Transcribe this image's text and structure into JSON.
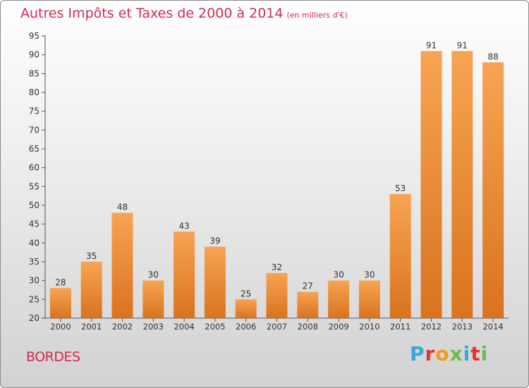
{
  "header": {
    "title": "Autres Impôts et Taxes de 2000 à 2014",
    "subtitle": "(en milliers d'€)"
  },
  "footer": {
    "town": "BORDES",
    "logo_text": "Proxiti",
    "logo_colors": [
      "#3aa6dd",
      "#e8312b",
      "#f39b1d",
      "#6dbb45",
      "#3aa6dd",
      "#e8312b",
      "#6dbb45"
    ]
  },
  "colors": {
    "bar_light": "#f7a453",
    "bar_dark": "#d9731e",
    "title": "#d12a52"
  },
  "chart_data": {
    "type": "bar",
    "categories": [
      "2000",
      "2001",
      "2002",
      "2003",
      "2004",
      "2005",
      "2006",
      "2007",
      "2008",
      "2009",
      "2010",
      "2011",
      "2012",
      "2013",
      "2014"
    ],
    "values": [
      28,
      35,
      48,
      30,
      43,
      39,
      25,
      32,
      27,
      30,
      30,
      53,
      91,
      91,
      88
    ],
    "title": "Autres Impôts et Taxes de 2000 à 2014",
    "ylim": [
      20,
      95
    ],
    "yticks": [
      20,
      25,
      30,
      35,
      40,
      45,
      50,
      55,
      60,
      65,
      70,
      75,
      80,
      85,
      90,
      95
    ],
    "grid": false
  }
}
